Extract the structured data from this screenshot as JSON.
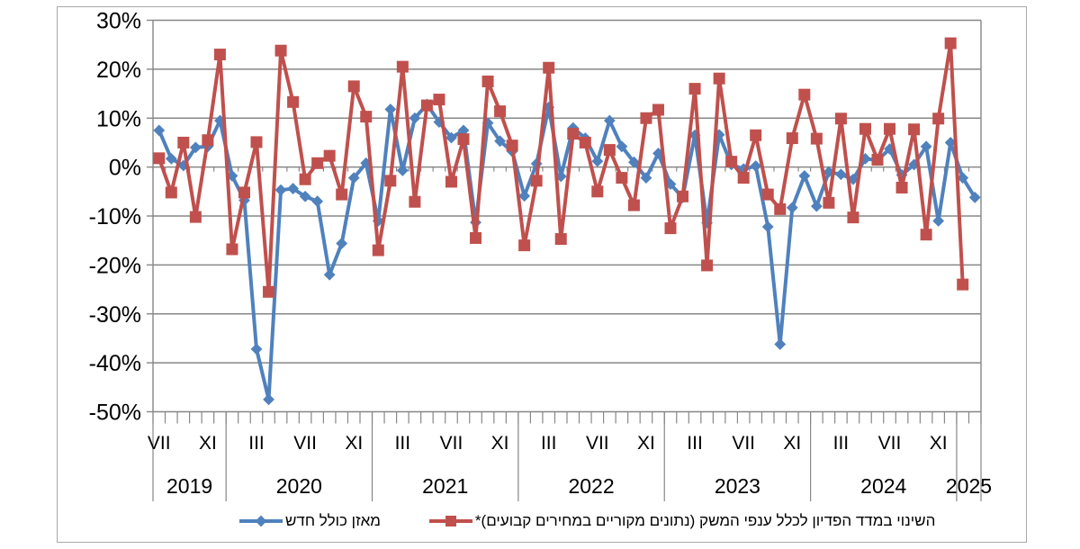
{
  "chart_data": {
    "type": "line",
    "title": "",
    "grid": true,
    "legend_position": "bottom",
    "y_axis": {
      "min": -50,
      "max": 30,
      "step": 10,
      "tick_labels": [
        "30%",
        "20%",
        "10%",
        "0%",
        "-10%",
        "-20%",
        "-30%",
        "-40%",
        "-50%"
      ]
    },
    "x_axis": {
      "start": "2019-07",
      "n_points": 68,
      "month_tick_labels": [
        {
          "i": 0,
          "t": "VII"
        },
        {
          "i": 4,
          "t": "XI"
        },
        {
          "i": 8,
          "t": "III"
        },
        {
          "i": 12,
          "t": "VII"
        },
        {
          "i": 16,
          "t": "XI"
        },
        {
          "i": 20,
          "t": "III"
        },
        {
          "i": 24,
          "t": "VII"
        },
        {
          "i": 28,
          "t": "XI"
        },
        {
          "i": 32,
          "t": "III"
        },
        {
          "i": 36,
          "t": "VII"
        },
        {
          "i": 40,
          "t": "XI"
        },
        {
          "i": 44,
          "t": "III"
        },
        {
          "i": 48,
          "t": "VII"
        },
        {
          "i": 52,
          "t": "XI"
        },
        {
          "i": 56,
          "t": "III"
        },
        {
          "i": 60,
          "t": "VII"
        },
        {
          "i": 64,
          "t": "XI"
        }
      ],
      "year_labels": [
        "2019",
        "2020",
        "2021",
        "2022",
        "2023",
        "2024",
        "2025"
      ],
      "year_sizes": [
        6,
        12,
        12,
        12,
        12,
        12,
        2
      ]
    },
    "series": [
      {
        "name": "מאזן כולל חדש",
        "color": "#4F81BD",
        "marker": "diamond",
        "values": [
          7.5,
          1.7,
          0.3,
          4.0,
          4.2,
          9.5,
          -1.8,
          -6.8,
          -37.2,
          -47.5,
          -4.7,
          -4.4,
          -6.0,
          -7.0,
          -22.0,
          -15.6,
          -2.2,
          0.8,
          -11.0,
          11.8,
          -0.7,
          10.0,
          12.8,
          9.2,
          6.0,
          7.5,
          -11.3,
          9.0,
          5.3,
          3.2,
          -5.9,
          0.7,
          12.2,
          -1.9,
          8.0,
          5.9,
          1.2,
          9.5,
          4.2,
          1.0,
          -2.2,
          2.8,
          -3.5,
          -6.2,
          6.5,
          -11.4,
          6.6,
          0.5,
          -0.4,
          0.2,
          -12.2,
          -36.2,
          -8.3,
          -1.8,
          -8.0,
          -1.0,
          -1.5,
          -2.5,
          1.7,
          1.4,
          3.7,
          -1.6,
          0.5,
          4.2,
          -11.0,
          5.0,
          -2.2,
          -6.2
        ]
      },
      {
        "name": "השינוי במדד הפדיון לכלל ענפי המשק (נתונים מקוריים במחירים קבועים)*",
        "color": "#C0504D",
        "marker": "square",
        "values": [
          1.8,
          -5.2,
          5.0,
          -10.2,
          5.5,
          23.0,
          -16.8,
          -5.2,
          5.1,
          -25.5,
          23.8,
          13.3,
          -2.5,
          0.8,
          2.3,
          -5.6,
          16.5,
          10.3,
          -17.0,
          -2.8,
          20.5,
          -7.1,
          12.6,
          13.8,
          -3.0,
          5.7,
          -14.5,
          17.5,
          11.4,
          4.4,
          -16.0,
          -2.8,
          20.3,
          -14.7,
          6.8,
          5.0,
          -5.0,
          3.5,
          -2.2,
          -7.8,
          10.0,
          11.7,
          -12.5,
          -6.0,
          16.0,
          -20.1,
          18.1,
          1.1,
          -2.2,
          6.5,
          -5.6,
          -8.6,
          5.9,
          14.8,
          5.8,
          -7.3,
          9.9,
          -10.3,
          7.8,
          1.5,
          7.8,
          -4.2,
          7.7,
          -13.8,
          9.9,
          25.3,
          -24.0,
          null
        ]
      }
    ],
    "colors": {
      "grid": "#878787",
      "axis": "#878787",
      "text": "#000000",
      "frame": "#a9a9a9"
    }
  }
}
